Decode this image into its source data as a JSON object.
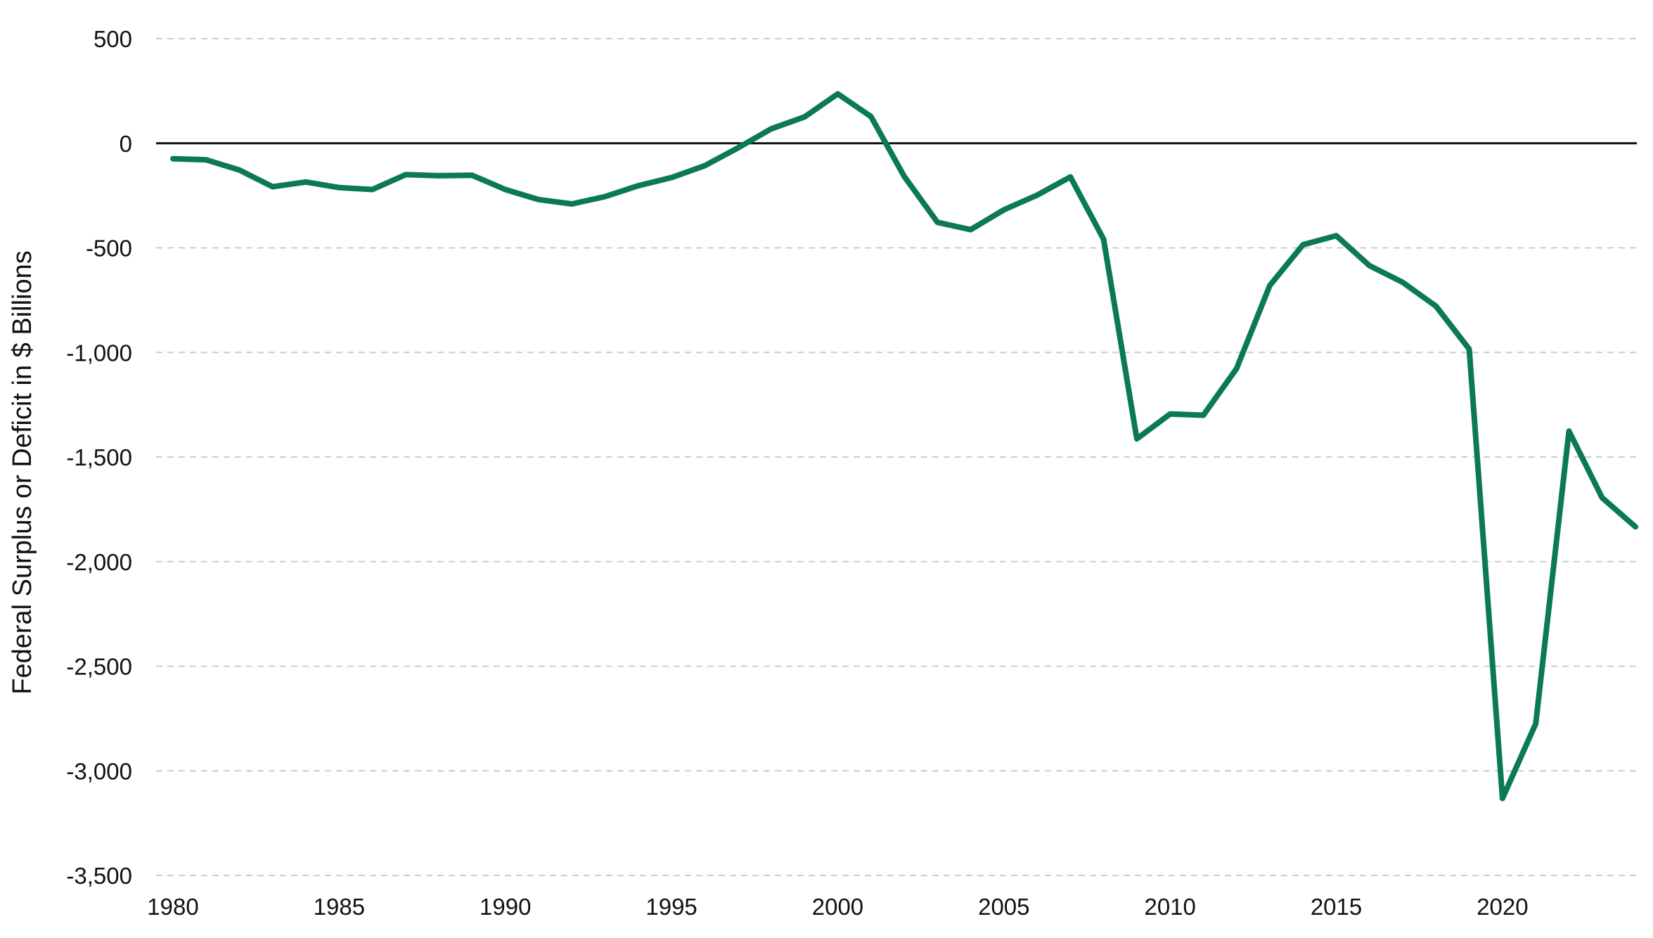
{
  "chart_data": {
    "type": "line",
    "title": "",
    "xlabel": "",
    "ylabel": "Federal Surplus or Deficit in $ Billions",
    "xlim": [
      1979.5,
      2024.5
    ],
    "ylim": [
      -3500,
      500
    ],
    "x_ticks": [
      1980,
      1985,
      1990,
      1995,
      2000,
      2005,
      2010,
      2015,
      2020
    ],
    "y_ticks": [
      500,
      0,
      -500,
      -1000,
      -1500,
      -2000,
      -2500,
      -3000,
      -3500
    ],
    "y_tick_labels": [
      "500",
      "0",
      "-500",
      "-1,000",
      "-1,500",
      "-2,000",
      "-2,500",
      "-3,000",
      "-3,500"
    ],
    "grid": "horizontal dashed",
    "zero_line": true,
    "line_color": "#0b7a52",
    "grid_color": "#cccccc",
    "series": [
      {
        "x": [
          1980,
          1981,
          1982,
          1983,
          1984,
          1985,
          1986,
          1987,
          1988,
          1989,
          1990,
          1991,
          1992,
          1993,
          1994,
          1995,
          1996,
          1997,
          1998,
          1999,
          2000,
          2001,
          2002,
          2003,
          2004,
          2005,
          2006,
          2007,
          2008,
          2009,
          2010,
          2011,
          2012,
          2013,
          2014,
          2015,
          2016,
          2017,
          2018,
          2019,
          2020,
          2021,
          2022,
          2023,
          2024
        ],
        "values": [
          -74,
          -79,
          -128,
          -208,
          -185,
          -212,
          -221,
          -150,
          -155,
          -153,
          -221,
          -269,
          -290,
          -255,
          -203,
          -164,
          -107,
          -22,
          69,
          126,
          236,
          128,
          -158,
          -378,
          -413,
          -318,
          -248,
          -161,
          -459,
          -1413,
          -1294,
          -1300,
          -1077,
          -680,
          -485,
          -442,
          -585,
          -665,
          -779,
          -984,
          -3132,
          -2775,
          -1376,
          -1695,
          -1833
        ]
      }
    ]
  }
}
